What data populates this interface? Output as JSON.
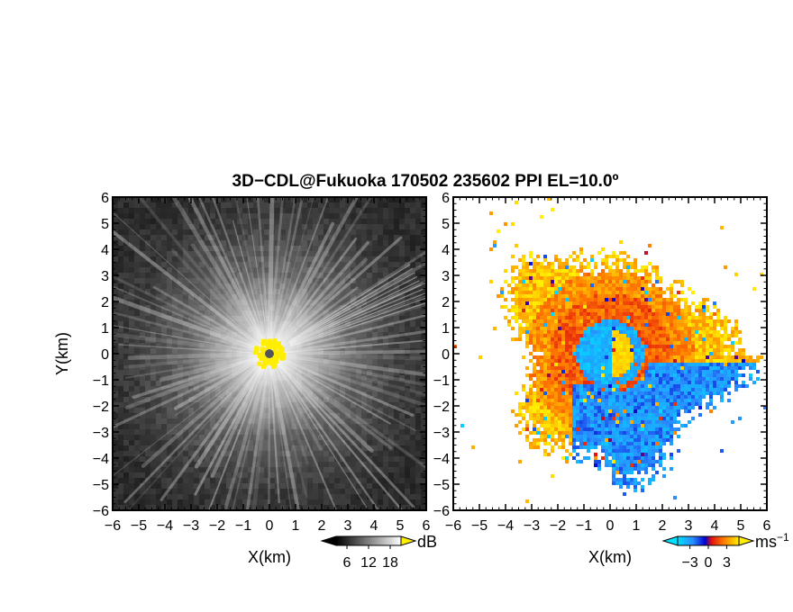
{
  "chart_data": [
    {
      "type": "heatmap",
      "title": "3D−CDL@Fukuoka 170502 235602 PPI EL=10.0º",
      "quantity": "backscatter intensity",
      "xlabel": "X(km)",
      "ylabel": "Y(km)",
      "xlim": [
        -6,
        6
      ],
      "ylim": [
        -6,
        6
      ],
      "xticks": [
        "−6",
        "−5",
        "−4",
        "−3",
        "−2",
        "−1",
        "0",
        "1",
        "2",
        "3",
        "4",
        "5",
        "6"
      ],
      "yticks": [
        "−6",
        "−5",
        "−4",
        "−3",
        "−2",
        "−1",
        "0",
        "1",
        "2",
        "3",
        "4",
        "5",
        "6"
      ],
      "colormap": "grayscale",
      "color_range": [
        3,
        21
      ],
      "colorbar": {
        "unit": "dB",
        "ticks": [
          "6",
          "12",
          "18"
        ],
        "tick_values": [
          6,
          12,
          18
        ]
      },
      "near_range_mask": {
        "color": "#ffee00",
        "radius_km": 0.55
      },
      "origin_marker": {
        "color": "#555555"
      },
      "pattern": "bright radial beams from origin, decaying with distance"
    },
    {
      "type": "heatmap",
      "quantity": "Doppler velocity",
      "xlabel": "X(km)",
      "xlim": [
        -6,
        6
      ],
      "ylim": [
        -6,
        6
      ],
      "xticks": [
        "−6",
        "−5",
        "−4",
        "−3",
        "−2",
        "−1",
        "0",
        "1",
        "2",
        "3",
        "4",
        "5",
        "6"
      ],
      "yticks": [
        "−6",
        "−5",
        "−4",
        "−3",
        "−2",
        "−1",
        "0",
        "1",
        "2",
        "3",
        "4",
        "5",
        "6"
      ],
      "colormap": "cyan-blue-red-orange-yellow",
      "color_range": [
        -5,
        5
      ],
      "colorbar": {
        "unit": "ms",
        "unit_exponent": "−1",
        "ticks": [
          "−3",
          "0",
          "3"
        ],
        "tick_values": [
          -3,
          0,
          3
        ]
      },
      "pattern": "receding (red/yellow) ring with approaching (blue) core and southeast region, sparse scatter outside ~4 km"
    }
  ]
}
